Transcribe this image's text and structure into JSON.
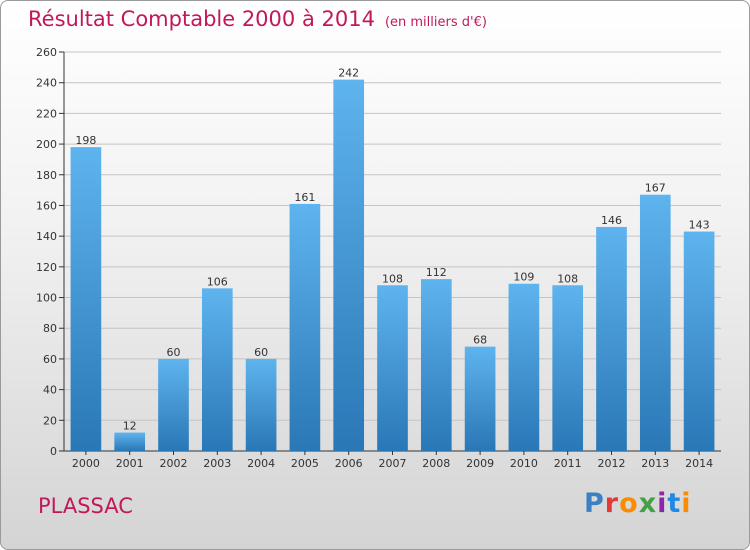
{
  "header": {
    "title": "Résultat Comptable 2000 à 2014",
    "unit": "(en milliers d'€)"
  },
  "location": "PLASSAC",
  "brand": "Proxiti",
  "colors": {
    "title": "#c2185b",
    "bar_top": "#5eb4ee",
    "bar_bottom": "#2a77b6"
  },
  "chart_data": {
    "type": "bar",
    "title": "Résultat Comptable 2000 à 2014",
    "subtitle": "(en milliers d'€)",
    "categories": [
      "2000",
      "2001",
      "2002",
      "2003",
      "2004",
      "2005",
      "2006",
      "2007",
      "2008",
      "2009",
      "2010",
      "2011",
      "2012",
      "2013",
      "2014"
    ],
    "values": [
      198,
      12,
      60,
      106,
      60,
      161,
      242,
      108,
      112,
      68,
      109,
      108,
      146,
      167,
      143
    ],
    "ylim": [
      0,
      260
    ],
    "yticks": [
      0,
      20,
      40,
      60,
      80,
      100,
      120,
      140,
      160,
      180,
      200,
      220,
      240,
      260
    ],
    "grid": true,
    "xlabel": "",
    "ylabel": ""
  }
}
